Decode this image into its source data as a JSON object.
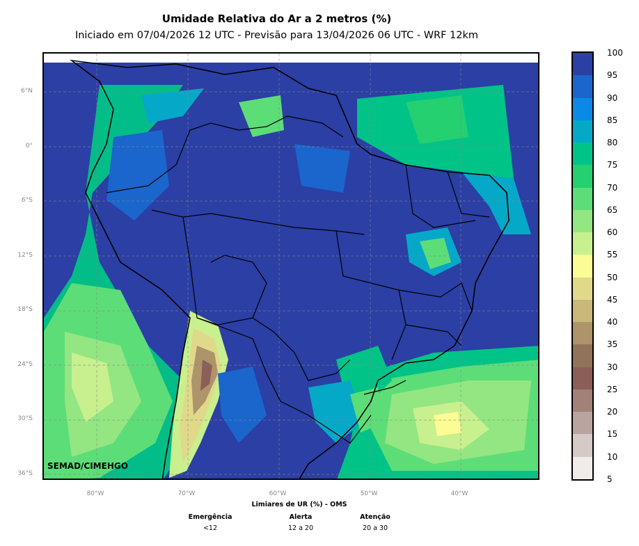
{
  "title": "Umidade Relativa do Ar a 2 metros (%)",
  "subtitle": "Iniciado em 07/04/2026 12 UTC - Previsão para 13/04/2026 06 UTC - WRF 12km",
  "credit": "SEMAD/CIMEHGO",
  "lat_labels": [
    "6°N",
    "0°",
    "6°S",
    "12°S",
    "18°S",
    "24°S",
    "30°S",
    "36°S"
  ],
  "lon_labels": [
    "80°W",
    "70°W",
    "60°W",
    "50°W",
    "40°W"
  ],
  "colorbar": {
    "ticks": [
      "100",
      "95",
      "90",
      "85",
      "80",
      "75",
      "70",
      "65",
      "60",
      "55",
      "50",
      "45",
      "40",
      "35",
      "30",
      "25",
      "20",
      "15",
      "10",
      "5"
    ],
    "colors": [
      "#2b3fa4",
      "#1a66cc",
      "#0a8ae6",
      "#06a8c8",
      "#00c487",
      "#25d070",
      "#5ddd78",
      "#93e682",
      "#c8f08e",
      "#fbfc95",
      "#e0d98a",
      "#c8b87a",
      "#ad946a",
      "#91735c",
      "#8a5f57",
      "#a38178",
      "#b9a49f",
      "#d6cac7",
      "#f1ecea"
    ]
  },
  "oms": {
    "heading": "Limiares de UR (%) - OMS",
    "levels": [
      {
        "name": "Emergência",
        "range": "<12"
      },
      {
        "name": "Alerta",
        "range": "12 a 20"
      },
      {
        "name": "Atenção",
        "range": "20 a 30"
      }
    ]
  }
}
